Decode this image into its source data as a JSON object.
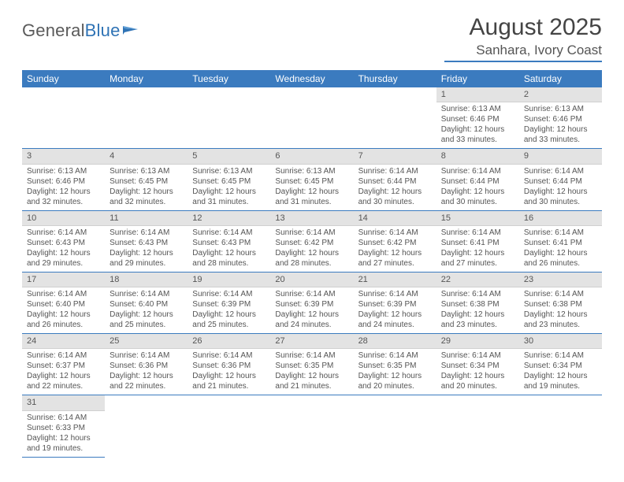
{
  "brand": {
    "part1": "General",
    "part2": "Blue"
  },
  "title": "August 2025",
  "location": "Sanhara, Ivory Coast",
  "colors": {
    "header_bg": "#3b7bbf",
    "header_text": "#ffffff",
    "daynum_bg": "#e3e3e3",
    "rule": "#3b7bbf",
    "text": "#555555",
    "brand_blue": "#2f73b5"
  },
  "weekdays": [
    "Sunday",
    "Monday",
    "Tuesday",
    "Wednesday",
    "Thursday",
    "Friday",
    "Saturday"
  ],
  "weeks": [
    [
      null,
      null,
      null,
      null,
      null,
      {
        "n": "1",
        "sr": "6:13 AM",
        "ss": "6:46 PM",
        "dl": "12 hours and 33 minutes."
      },
      {
        "n": "2",
        "sr": "6:13 AM",
        "ss": "6:46 PM",
        "dl": "12 hours and 33 minutes."
      }
    ],
    [
      {
        "n": "3",
        "sr": "6:13 AM",
        "ss": "6:46 PM",
        "dl": "12 hours and 32 minutes."
      },
      {
        "n": "4",
        "sr": "6:13 AM",
        "ss": "6:45 PM",
        "dl": "12 hours and 32 minutes."
      },
      {
        "n": "5",
        "sr": "6:13 AM",
        "ss": "6:45 PM",
        "dl": "12 hours and 31 minutes."
      },
      {
        "n": "6",
        "sr": "6:13 AM",
        "ss": "6:45 PM",
        "dl": "12 hours and 31 minutes."
      },
      {
        "n": "7",
        "sr": "6:14 AM",
        "ss": "6:44 PM",
        "dl": "12 hours and 30 minutes."
      },
      {
        "n": "8",
        "sr": "6:14 AM",
        "ss": "6:44 PM",
        "dl": "12 hours and 30 minutes."
      },
      {
        "n": "9",
        "sr": "6:14 AM",
        "ss": "6:44 PM",
        "dl": "12 hours and 30 minutes."
      }
    ],
    [
      {
        "n": "10",
        "sr": "6:14 AM",
        "ss": "6:43 PM",
        "dl": "12 hours and 29 minutes."
      },
      {
        "n": "11",
        "sr": "6:14 AM",
        "ss": "6:43 PM",
        "dl": "12 hours and 29 minutes."
      },
      {
        "n": "12",
        "sr": "6:14 AM",
        "ss": "6:43 PM",
        "dl": "12 hours and 28 minutes."
      },
      {
        "n": "13",
        "sr": "6:14 AM",
        "ss": "6:42 PM",
        "dl": "12 hours and 28 minutes."
      },
      {
        "n": "14",
        "sr": "6:14 AM",
        "ss": "6:42 PM",
        "dl": "12 hours and 27 minutes."
      },
      {
        "n": "15",
        "sr": "6:14 AM",
        "ss": "6:41 PM",
        "dl": "12 hours and 27 minutes."
      },
      {
        "n": "16",
        "sr": "6:14 AM",
        "ss": "6:41 PM",
        "dl": "12 hours and 26 minutes."
      }
    ],
    [
      {
        "n": "17",
        "sr": "6:14 AM",
        "ss": "6:40 PM",
        "dl": "12 hours and 26 minutes."
      },
      {
        "n": "18",
        "sr": "6:14 AM",
        "ss": "6:40 PM",
        "dl": "12 hours and 25 minutes."
      },
      {
        "n": "19",
        "sr": "6:14 AM",
        "ss": "6:39 PM",
        "dl": "12 hours and 25 minutes."
      },
      {
        "n": "20",
        "sr": "6:14 AM",
        "ss": "6:39 PM",
        "dl": "12 hours and 24 minutes."
      },
      {
        "n": "21",
        "sr": "6:14 AM",
        "ss": "6:39 PM",
        "dl": "12 hours and 24 minutes."
      },
      {
        "n": "22",
        "sr": "6:14 AM",
        "ss": "6:38 PM",
        "dl": "12 hours and 23 minutes."
      },
      {
        "n": "23",
        "sr": "6:14 AM",
        "ss": "6:38 PM",
        "dl": "12 hours and 23 minutes."
      }
    ],
    [
      {
        "n": "24",
        "sr": "6:14 AM",
        "ss": "6:37 PM",
        "dl": "12 hours and 22 minutes."
      },
      {
        "n": "25",
        "sr": "6:14 AM",
        "ss": "6:36 PM",
        "dl": "12 hours and 22 minutes."
      },
      {
        "n": "26",
        "sr": "6:14 AM",
        "ss": "6:36 PM",
        "dl": "12 hours and 21 minutes."
      },
      {
        "n": "27",
        "sr": "6:14 AM",
        "ss": "6:35 PM",
        "dl": "12 hours and 21 minutes."
      },
      {
        "n": "28",
        "sr": "6:14 AM",
        "ss": "6:35 PM",
        "dl": "12 hours and 20 minutes."
      },
      {
        "n": "29",
        "sr": "6:14 AM",
        "ss": "6:34 PM",
        "dl": "12 hours and 20 minutes."
      },
      {
        "n": "30",
        "sr": "6:14 AM",
        "ss": "6:34 PM",
        "dl": "12 hours and 19 minutes."
      }
    ],
    [
      {
        "n": "31",
        "sr": "6:14 AM",
        "ss": "6:33 PM",
        "dl": "12 hours and 19 minutes."
      },
      null,
      null,
      null,
      null,
      null,
      null
    ]
  ],
  "labels": {
    "sunrise": "Sunrise: ",
    "sunset": "Sunset: ",
    "daylight": "Daylight: "
  }
}
